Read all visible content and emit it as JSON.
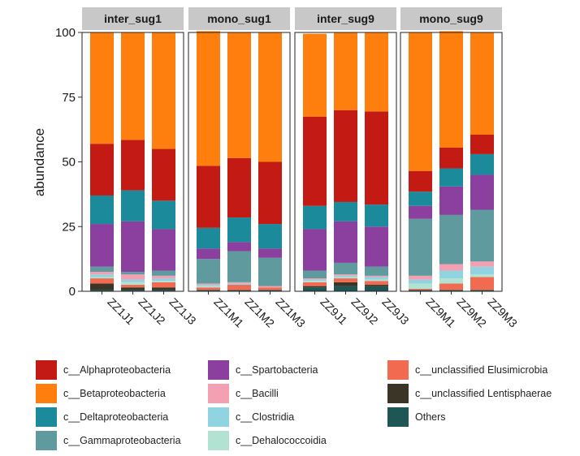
{
  "chart_data": {
    "type": "bar",
    "stacked": true,
    "ylabel": "abundance",
    "xlabel": "",
    "ylim": [
      0,
      100
    ],
    "yticks": [
      0,
      25,
      50,
      75,
      100
    ],
    "grid": false,
    "legend_position": "bottom",
    "facets": [
      {
        "label": "inter_sug1",
        "samples": [
          "ZZ1J1",
          "ZZ1J2",
          "ZZ1J3"
        ]
      },
      {
        "label": "mono_sug1",
        "samples": [
          "ZZ1M1",
          "ZZ1M2",
          "ZZ1M3"
        ]
      },
      {
        "label": "inter_sug9",
        "samples": [
          "ZZ9J1",
          "ZZ9J2",
          "ZZ9J3"
        ]
      },
      {
        "label": "mono_sug9",
        "samples": [
          "ZZ9M1",
          "ZZ9M2",
          "ZZ9M3"
        ]
      }
    ],
    "categories": [
      "ZZ1J1",
      "ZZ1J2",
      "ZZ1J3",
      "ZZ1M1",
      "ZZ1M2",
      "ZZ1M3",
      "ZZ9J1",
      "ZZ9J2",
      "ZZ9J3",
      "ZZ9M1",
      "ZZ9M2",
      "ZZ9M3"
    ],
    "stack_order_bottom_to_top": [
      "Others",
      "c__unclassified Lentisphaerae",
      "c__unclassified Elusimicrobia",
      "c__Dehalococcoidia",
      "c__Clostridia",
      "c__Bacilli",
      "c__Gammaproteobacteria",
      "c__Spartobacteria",
      "c__Deltaproteobacteria",
      "c__Alphaproteobacteria",
      "c__Betaproteobacteria"
    ],
    "series": [
      {
        "name": "Others",
        "color": "#1e5555",
        "values": [
          0.5,
          0.5,
          0.5,
          0.5,
          0.5,
          0.5,
          1.5,
          2.0,
          2.0,
          0.5,
          0.5,
          0.5
        ]
      },
      {
        "name": "c__unclassified Lentisphaerae",
        "color": "#3a3527",
        "values": [
          2.5,
          1.0,
          1.0,
          0,
          0,
          0,
          0.5,
          1.5,
          0.5,
          0,
          0,
          0
        ]
      },
      {
        "name": "c__unclassified Elusimicrobia",
        "color": "#f26a50",
        "values": [
          2.0,
          1.0,
          2.0,
          1.0,
          2.0,
          1.0,
          1.5,
          1.5,
          1.5,
          0.5,
          2.5,
          5.0
        ]
      },
      {
        "name": "c__Dehalococcoidia",
        "color": "#b2e2d2",
        "values": [
          0.5,
          1.0,
          0.5,
          0.5,
          0,
          0,
          0.5,
          0.5,
          0.5,
          2.0,
          2.0,
          1.0
        ]
      },
      {
        "name": "c__Clostridia",
        "color": "#8fd4e0",
        "values": [
          1.0,
          1.0,
          1.0,
          0.5,
          0.5,
          0,
          0.5,
          0.5,
          1.0,
          1.5,
          3.0,
          3.0
        ]
      },
      {
        "name": "c__Bacilli",
        "color": "#f2a0b2",
        "values": [
          1.0,
          2.0,
          1.0,
          0.5,
          0.5,
          0.5,
          0.5,
          0.5,
          0.5,
          1.5,
          2.5,
          2.0
        ]
      },
      {
        "name": "c__Gammaproteobacteria",
        "color": "#5f9a9e",
        "values": [
          2.0,
          1.0,
          2.0,
          9.5,
          12.0,
          11.0,
          3.0,
          4.5,
          3.5,
          22.0,
          19.0,
          20.0
        ]
      },
      {
        "name": "c__Spartobacteria",
        "color": "#8b3f9e",
        "values": [
          16.5,
          19.5,
          16.0,
          4.0,
          3.5,
          3.5,
          16.0,
          16.0,
          15.5,
          5.0,
          11.0,
          13.5
        ]
      },
      {
        "name": "c__Deltaproteobacteria",
        "color": "#1b8a9a",
        "values": [
          11.0,
          12.0,
          11.0,
          8.0,
          9.5,
          9.5,
          9.0,
          7.5,
          8.5,
          5.5,
          7.0,
          8.0
        ]
      },
      {
        "name": "c__Alphaproteobacteria",
        "color": "#c41a14",
        "values": [
          20.0,
          19.5,
          20.0,
          24.0,
          23.0,
          24.0,
          34.5,
          35.5,
          36.0,
          8.0,
          8.0,
          7.5
        ]
      },
      {
        "name": "c__Betaproteobacteria",
        "color": "#ff7f0e",
        "values": [
          43.0,
          41.5,
          45.0,
          52.0,
          48.5,
          50.0,
          32.0,
          30.0,
          30.5,
          53.5,
          45.0,
          39.5
        ]
      }
    ],
    "legend": [
      [
        "c__Alphaproteobacteria",
        "c__Betaproteobacteria",
        "c__Deltaproteobacteria",
        "c__Gammaproteobacteria"
      ],
      [
        "c__Spartobacteria",
        "c__Bacilli",
        "c__Clostridia",
        "c__Dehalococcoidia"
      ],
      [
        "c__unclassified Elusimicrobia",
        "c__unclassified Lentisphaerae",
        "Others"
      ]
    ],
    "colors": {
      "strip_fill": "#c8c8c8",
      "panel_border": "#222222",
      "text": "#1a1a1a"
    }
  }
}
